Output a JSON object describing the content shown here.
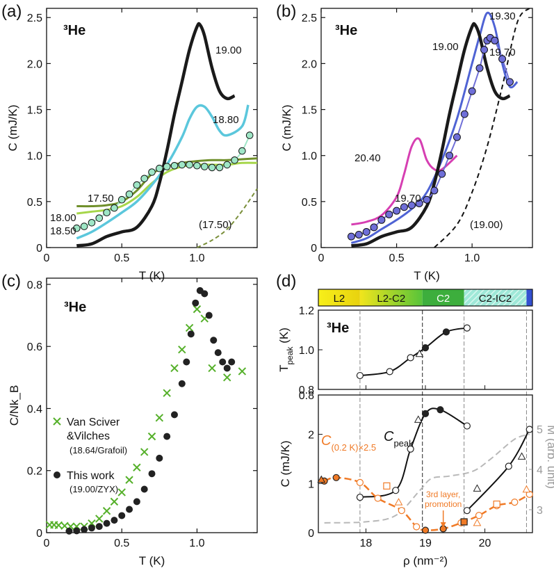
{
  "colors": {
    "black": "#1a1a1a",
    "cyan": "#5bc7dc",
    "green_dark": "#6f8f2a",
    "green_light": "#a6d64a",
    "mint": "#9fe6c6",
    "olive_dash": "#7a8f3a",
    "blue": "#4f63d4",
    "magenta": "#d63fb2",
    "purple": "#6f6fd8",
    "orange": "#f07a26",
    "grey": "#b8b8b8",
    "crosses": "#55b02a"
  },
  "chart_data": [
    {
      "id": "a",
      "panel_label": "(a)",
      "type": "line",
      "species": "³He",
      "xlabel": "T (K)",
      "ylabel": "C (mJ/K)",
      "xlim": [
        0,
        1.4
      ],
      "ylim": [
        0,
        2.6
      ],
      "xticks": [
        0,
        0.5,
        1.0
      ],
      "xtick_labels": [
        "0",
        "0.5",
        "1.0"
      ],
      "yticks": [
        0,
        0.5,
        1.0,
        1.5,
        2.0,
        2.5
      ],
      "ytick_labels": [
        "0",
        "0.5",
        "1.0",
        "1.5",
        "2.0",
        "2.5"
      ],
      "series": [
        {
          "name": "19.00",
          "x": [
            0.2,
            0.3,
            0.4,
            0.5,
            0.6,
            0.7,
            0.75,
            0.8,
            0.85,
            0.9,
            0.95,
            1.0,
            1.02,
            1.05,
            1.1,
            1.15,
            1.2,
            1.25
          ],
          "y": [
            0.02,
            0.04,
            0.12,
            0.17,
            0.22,
            0.45,
            0.7,
            1.05,
            1.45,
            1.8,
            2.15,
            2.4,
            2.42,
            2.3,
            1.95,
            1.7,
            1.62,
            1.65
          ]
        },
        {
          "name": "18.80",
          "x": [
            0.2,
            0.3,
            0.4,
            0.5,
            0.6,
            0.7,
            0.8,
            0.9,
            0.95,
            1.0,
            1.05,
            1.1,
            1.15,
            1.2,
            1.3,
            1.34
          ],
          "y": [
            0.1,
            0.17,
            0.27,
            0.38,
            0.5,
            0.68,
            0.9,
            1.2,
            1.4,
            1.53,
            1.53,
            1.42,
            1.27,
            1.22,
            1.32,
            1.55
          ]
        },
        {
          "name": "17.50",
          "x": [
            0.2,
            0.3,
            0.4,
            0.5,
            0.6,
            0.7,
            0.8,
            0.9,
            1.0,
            1.1,
            1.2,
            1.3,
            1.4
          ],
          "y": [
            0.45,
            0.45,
            0.46,
            0.5,
            0.62,
            0.8,
            0.88,
            0.92,
            0.94,
            0.95,
            0.95,
            0.96,
            0.97
          ]
        },
        {
          "name": "18.00",
          "x": [
            0.2,
            0.3,
            0.4,
            0.5,
            0.6,
            0.7,
            0.8,
            0.9,
            1.0,
            1.1,
            1.2,
            1.3,
            1.4
          ],
          "y": [
            0.37,
            0.39,
            0.41,
            0.45,
            0.55,
            0.7,
            0.82,
            0.88,
            0.9,
            0.9,
            0.9,
            0.92,
            0.92
          ]
        },
        {
          "name": "18.50",
          "x": [
            0.2,
            0.25,
            0.3,
            0.35,
            0.4,
            0.45,
            0.5,
            0.55,
            0.6,
            0.65,
            0.7,
            0.75,
            0.8,
            0.85,
            0.9,
            0.95,
            1.0,
            1.05,
            1.1,
            1.15,
            1.2,
            1.25,
            1.3,
            1.35
          ],
          "y": [
            0.21,
            0.23,
            0.27,
            0.32,
            0.38,
            0.43,
            0.52,
            0.58,
            0.68,
            0.75,
            0.82,
            0.86,
            0.88,
            0.89,
            0.9,
            0.9,
            0.89,
            0.88,
            0.87,
            0.87,
            0.9,
            0.95,
            1.05,
            1.22
          ]
        },
        {
          "name": "(17.50)",
          "x": [
            1.0,
            1.1,
            1.2,
            1.3,
            1.4
          ],
          "y": [
            0.0,
            0.08,
            0.2,
            0.4,
            0.64
          ]
        }
      ],
      "labels": [
        "19.00",
        "18.80",
        "17.50",
        "18.00",
        "18.50",
        "(17.50)"
      ]
    },
    {
      "id": "b",
      "panel_label": "(b)",
      "type": "line",
      "species": "³He",
      "xlabel": "T (K)",
      "ylabel": "C (mJ/K)",
      "xlim": [
        0,
        1.4
      ],
      "ylim": [
        0,
        2.6
      ],
      "xticks": [
        0,
        0.5,
        1.0
      ],
      "xtick_labels": [
        "0",
        "0.5",
        "1.0"
      ],
      "yticks": [
        0,
        0.5,
        1.0,
        1.5,
        2.0,
        2.5
      ],
      "ytick_labels": [
        "0",
        "0.5",
        "1.0",
        "1.5",
        "2.0",
        "2.5"
      ],
      "series": [
        {
          "name": "19.00",
          "x": [
            0.2,
            0.3,
            0.4,
            0.5,
            0.6,
            0.7,
            0.75,
            0.8,
            0.85,
            0.9,
            0.95,
            1.0,
            1.02,
            1.05,
            1.1,
            1.15,
            1.2,
            1.25
          ],
          "y": [
            0.02,
            0.04,
            0.12,
            0.17,
            0.22,
            0.45,
            0.7,
            1.05,
            1.45,
            1.8,
            2.15,
            2.4,
            2.42,
            2.3,
            1.95,
            1.7,
            1.62,
            1.65
          ]
        },
        {
          "name": "19.30",
          "x": [
            0.2,
            0.3,
            0.4,
            0.5,
            0.6,
            0.7,
            0.8,
            0.9,
            1.0,
            1.05,
            1.1,
            1.15,
            1.2,
            1.25,
            1.3
          ],
          "y": [
            0.05,
            0.1,
            0.2,
            0.3,
            0.42,
            0.6,
            0.95,
            1.4,
            2.0,
            2.3,
            2.55,
            2.4,
            2.0,
            1.75,
            1.8
          ]
        },
        {
          "name": "20.40",
          "x": [
            0.2,
            0.3,
            0.4,
            0.5,
            0.55,
            0.6,
            0.65,
            0.7,
            0.75,
            0.8,
            0.9
          ],
          "y": [
            0.25,
            0.28,
            0.35,
            0.55,
            0.8,
            1.1,
            1.18,
            0.95,
            0.85,
            0.85,
            1.0
          ]
        },
        {
          "name": "19.70",
          "x": [
            0.2,
            0.25,
            0.3,
            0.35,
            0.4,
            0.45,
            0.5,
            0.55,
            0.6,
            0.65,
            0.7,
            0.75,
            0.8,
            0.85,
            0.9,
            0.95,
            1.0,
            1.05,
            1.08,
            1.1,
            1.12,
            1.15,
            1.2,
            1.25
          ],
          "y": [
            0.12,
            0.14,
            0.17,
            0.22,
            0.3,
            0.36,
            0.4,
            0.44,
            0.46,
            0.48,
            0.52,
            0.62,
            0.8,
            1.0,
            1.2,
            1.45,
            1.7,
            1.95,
            2.15,
            2.25,
            2.28,
            2.25,
            2.05,
            1.8
          ]
        },
        {
          "name": "(19.00)",
          "x": [
            0.75,
            0.9,
            1.0,
            1.1,
            1.2,
            1.3,
            1.38
          ],
          "y": [
            0.0,
            0.25,
            0.6,
            1.1,
            1.75,
            2.45,
            2.6
          ]
        }
      ],
      "labels": [
        "19.30",
        "19.70",
        "19.00",
        "20.40",
        "19.70",
        "(19.00)"
      ]
    },
    {
      "id": "c",
      "panel_label": "(c)",
      "type": "scatter",
      "species": "³He",
      "xlabel": "T (K)",
      "ylabel": "C/Nk_B",
      "xlim": [
        0,
        1.4
      ],
      "ylim": [
        0,
        0.82
      ],
      "xticks": [
        0,
        0.5,
        1.0
      ],
      "xtick_labels": [
        "0",
        "0.5",
        "1.0"
      ],
      "yticks": [
        0,
        0.2,
        0.4,
        0.6,
        0.8
      ],
      "ytick_labels": [
        "0",
        "0.2",
        "0.4",
        "0.6",
        "0.8"
      ],
      "series": [
        {
          "name": "Van Sciver &Vilches",
          "note": "(18.64/Grafoil)",
          "marker": "x",
          "x": [
            0.02,
            0.05,
            0.08,
            0.12,
            0.16,
            0.2,
            0.25,
            0.3,
            0.35,
            0.4,
            0.45,
            0.5,
            0.55,
            0.6,
            0.65,
            0.7,
            0.75,
            0.8,
            0.85,
            0.9,
            0.95,
            1.0,
            1.05,
            1.1,
            1.2,
            1.3
          ],
          "y": [
            0.025,
            0.025,
            0.024,
            0.022,
            0.02,
            0.02,
            0.02,
            0.03,
            0.045,
            0.07,
            0.1,
            0.13,
            0.17,
            0.21,
            0.26,
            0.31,
            0.37,
            0.45,
            0.53,
            0.59,
            0.66,
            0.72,
            0.69,
            0.53,
            0.5,
            0.52
          ]
        },
        {
          "name": "This work",
          "note": "(19.00/ZYX)",
          "marker": "circle",
          "x": [
            0.15,
            0.2,
            0.25,
            0.3,
            0.35,
            0.4,
            0.45,
            0.5,
            0.55,
            0.6,
            0.65,
            0.7,
            0.75,
            0.8,
            0.85,
            0.9,
            0.93,
            0.96,
            0.99,
            1.02,
            1.05,
            1.08,
            1.11,
            1.14,
            1.17,
            1.2,
            1.23
          ],
          "y": [
            0.005,
            0.006,
            0.01,
            0.015,
            0.02,
            0.03,
            0.04,
            0.055,
            0.075,
            0.1,
            0.14,
            0.19,
            0.24,
            0.31,
            0.38,
            0.48,
            0.55,
            0.64,
            0.74,
            0.78,
            0.77,
            0.7,
            0.62,
            0.58,
            0.55,
            0.53,
            0.55
          ]
        }
      ]
    },
    {
      "id": "d",
      "panel_label": "(d)",
      "type": "line",
      "species": "³He",
      "xlabel": "ρ (nm⁻²)",
      "xlim": [
        17.2,
        20.8
      ],
      "xticks": [
        18,
        19,
        20
      ],
      "xtick_labels": [
        "18",
        "19",
        "20"
      ],
      "phase_bar": [
        {
          "label": "L2",
          "from": 17.2,
          "to": 17.9
        },
        {
          "label": "L2-C2",
          "from": 17.9,
          "to": 18.95
        },
        {
          "label": "C2",
          "from": 18.95,
          "to": 19.65
        },
        {
          "label": "C2-IC2",
          "from": 19.65,
          "to": 20.7
        }
      ],
      "top": {
        "ylabel": "T_peak (K)",
        "ylim": [
          0.8,
          1.2
        ],
        "yticks": [
          0.8,
          1.0,
          1.2
        ],
        "ytick_labels": [
          "0.8",
          "1.0",
          "1.2"
        ],
        "x": [
          17.9,
          18.4,
          18.75,
          19.0,
          19.35,
          19.7
        ],
        "y": [
          0.87,
          0.89,
          0.96,
          1.01,
          1.09,
          1.11
        ],
        "triangles": {
          "x": [
            18.9
          ],
          "y": [
            0.98
          ]
        }
      },
      "bottom": {
        "ylabel": "C (mJ/K)",
        "ylim": [
          0,
          2.8
        ],
        "yticks": [
          0,
          1,
          2
        ],
        "ytick_labels": [
          "0",
          "1",
          "2"
        ],
        "right_ylabel": "M (arb. unit)",
        "right_ticks": [
          "3",
          "4",
          "5"
        ],
        "cpeak_label": "C",
        "cpeak_sub": "peak",
        "cpeak": {
          "x": [
            17.9,
            18.5,
            18.75,
            19.0,
            19.25,
            19.7,
            19.7,
            20.4,
            20.75
          ],
          "y": [
            0.72,
            0.86,
            1.7,
            2.42,
            2.5,
            2.17,
            0.45,
            1.35,
            2.1
          ]
        },
        "cpeak_triangles": {
          "x": [
            18.88,
            19.87,
            20.62
          ],
          "y": [
            2.3,
            0.9,
            1.55
          ]
        },
        "c02_label": "C",
        "c02_sub": "(0.2 K)×2.5",
        "c02": {
          "x": [
            17.3,
            17.5,
            17.9,
            18.2,
            18.6,
            18.85,
            19.0,
            19.3,
            19.6,
            19.9,
            20.2,
            20.5,
            20.75
          ],
          "y": [
            1.05,
            1.12,
            1.02,
            0.7,
            0.45,
            0.12,
            0.05,
            0.08,
            0.2,
            0.35,
            0.55,
            0.62,
            0.78
          ]
        },
        "c02_squares": {
          "x": [
            18.35,
            19.65,
            20.2
          ],
          "y": [
            0.95,
            0.22,
            0.58
          ]
        },
        "c02_triangles": {
          "x": [
            17.25,
            18.55,
            19.87,
            20.7
          ],
          "y": [
            1.08,
            0.62,
            0.2,
            0.88
          ]
        },
        "magnet": {
          "x": [
            17.3,
            18.0,
            18.5,
            18.9,
            19.1,
            19.4,
            19.8,
            20.1,
            20.5,
            20.75
          ],
          "y": [
            0.2,
            0.22,
            0.35,
            0.85,
            1.1,
            1.15,
            1.25,
            1.5,
            1.9,
            2.0
          ]
        },
        "annotation": "3rd layer promotion"
      }
    }
  ]
}
